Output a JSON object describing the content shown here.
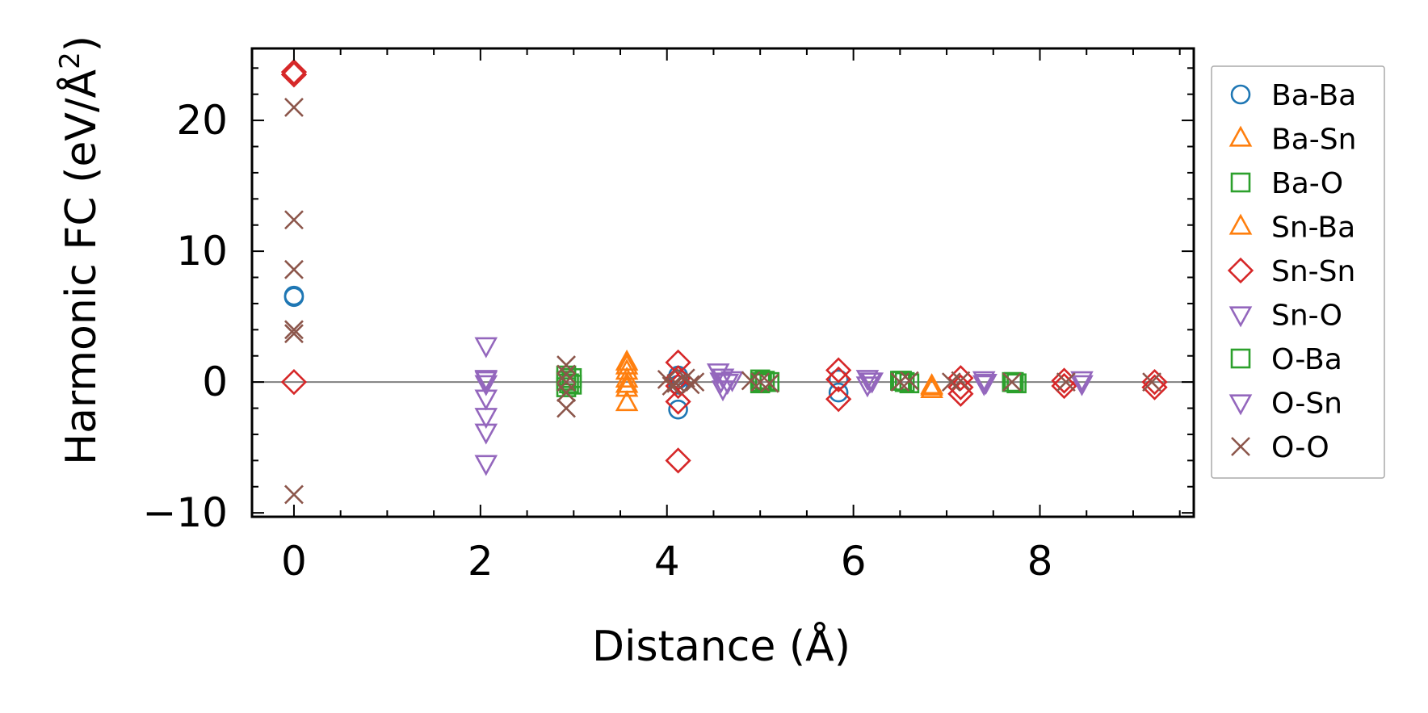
{
  "chart_data": {
    "type": "scatter",
    "title": "",
    "xlabel": "Distance (Å)",
    "ylabel": "Harmonic FC (eV/Å",
    "ylabel_unit_superscript": "2",
    "ylabel_close": ")",
    "xlim": [
      -0.45,
      9.65
    ],
    "ylim": [
      -10.3,
      25.5
    ],
    "xticks": [
      0,
      2,
      4,
      6,
      8
    ],
    "yticks": [
      -10,
      0,
      10,
      20
    ],
    "xtick_labels": [
      "0",
      "2",
      "4",
      "6",
      "8"
    ],
    "ytick_labels": [
      "−10",
      "0",
      "10",
      "20"
    ],
    "reference_line_y": 0,
    "grid": false,
    "legend_position": "outside-right",
    "series": [
      {
        "name": "Ba-Ba",
        "marker": "circle",
        "color": "#1f77b4",
        "points": [
          [
            0,
            6.6
          ],
          [
            0,
            6.5
          ],
          [
            4.12,
            -2.1
          ],
          [
            4.12,
            0.5
          ],
          [
            4.12,
            0.2
          ],
          [
            4.12,
            -0.2
          ],
          [
            5.84,
            -0.8
          ],
          [
            5.84,
            0.2
          ]
        ]
      },
      {
        "name": "Ba-Sn",
        "marker": "triangle-up",
        "color": "#ff7f0e",
        "points": [
          [
            3.57,
            1.5
          ],
          [
            3.57,
            0.8
          ],
          [
            3.57,
            0.2
          ],
          [
            3.57,
            -0.5
          ],
          [
            3.57,
            -1.6
          ],
          [
            6.84,
            -0.3
          ],
          [
            6.84,
            -0.6
          ]
        ]
      },
      {
        "name": "Ba-O",
        "marker": "square",
        "color": "#2ca02c",
        "points": [
          [
            2.92,
            -0.4
          ],
          [
            2.92,
            0.1
          ],
          [
            2.92,
            0.5
          ],
          [
            2.98,
            -0.2
          ],
          [
            2.98,
            0.3
          ],
          [
            5.0,
            0.2
          ],
          [
            5.0,
            -0.1
          ],
          [
            5.05,
            0.1
          ],
          [
            5.1,
            0.0
          ],
          [
            6.5,
            0.1
          ],
          [
            6.55,
            0.0
          ],
          [
            6.6,
            -0.1
          ],
          [
            7.7,
            0.0
          ],
          [
            7.75,
            -0.1
          ]
        ]
      },
      {
        "name": "Sn-Ba",
        "marker": "triangle-up",
        "color": "#ff7f0e",
        "points": [
          [
            3.57,
            1.2
          ],
          [
            3.57,
            -0.2
          ],
          [
            6.84,
            -0.4
          ]
        ]
      },
      {
        "name": "Sn-Sn",
        "marker": "diamond",
        "color": "#d62728",
        "points": [
          [
            0,
            23.7
          ],
          [
            0,
            23.5
          ],
          [
            0,
            0.0
          ],
          [
            4.12,
            1.5
          ],
          [
            4.12,
            0.3
          ],
          [
            4.12,
            -0.3
          ],
          [
            4.12,
            -1.5
          ],
          [
            4.12,
            -6.0
          ],
          [
            5.84,
            0.9
          ],
          [
            5.84,
            0.2
          ],
          [
            5.84,
            -1.3
          ],
          [
            7.15,
            0.3
          ],
          [
            7.15,
            -0.4
          ],
          [
            7.15,
            -0.9
          ],
          [
            8.26,
            0.1
          ],
          [
            8.26,
            -0.3
          ],
          [
            9.23,
            0.0
          ],
          [
            9.23,
            -0.4
          ]
        ]
      },
      {
        "name": "Sn-O",
        "marker": "triangle-down",
        "color": "#9467bd",
        "points": [
          [
            2.06,
            2.8
          ],
          [
            2.06,
            0.3
          ],
          [
            2.06,
            -0.1
          ],
          [
            2.06,
            -1.2
          ],
          [
            2.06,
            -2.6
          ],
          [
            2.06,
            -3.8
          ],
          [
            2.06,
            -6.2
          ],
          [
            4.55,
            0.8
          ],
          [
            4.6,
            0.4
          ],
          [
            4.65,
            0.0
          ],
          [
            4.6,
            -0.5
          ],
          [
            4.7,
            0.2
          ],
          [
            6.15,
            0.3
          ],
          [
            6.2,
            0.1
          ],
          [
            6.15,
            -0.2
          ],
          [
            7.4,
            0.2
          ],
          [
            7.4,
            -0.1
          ],
          [
            8.45,
            0.2
          ],
          [
            8.45,
            -0.1
          ]
        ]
      },
      {
        "name": "O-Ba",
        "marker": "square",
        "color": "#2ca02c",
        "points": [
          [
            2.95,
            -0.1
          ],
          [
            5.02,
            0.0
          ],
          [
            6.52,
            0.1
          ],
          [
            7.72,
            0.0
          ]
        ]
      },
      {
        "name": "O-Sn",
        "marker": "triangle-down",
        "color": "#9467bd",
        "points": [
          [
            2.06,
            0.2
          ],
          [
            4.58,
            0.1
          ],
          [
            6.18,
            0.1
          ],
          [
            7.42,
            0.0
          ]
        ]
      },
      {
        "name": "O-O",
        "marker": "x",
        "color": "#8c564b",
        "points": [
          [
            0,
            21.0
          ],
          [
            0,
            12.4
          ],
          [
            0,
            8.6
          ],
          [
            0,
            4.0
          ],
          [
            0,
            3.7
          ],
          [
            0,
            -8.6
          ],
          [
            2.92,
            1.3
          ],
          [
            2.92,
            0.6
          ],
          [
            2.92,
            0.0
          ],
          [
            2.92,
            -0.8
          ],
          [
            2.92,
            -2.0
          ],
          [
            4.0,
            0.2
          ],
          [
            4.1,
            -0.1
          ],
          [
            4.2,
            0.3
          ],
          [
            4.3,
            0.0
          ],
          [
            4.05,
            -0.3
          ],
          [
            4.25,
            -0.2
          ],
          [
            4.9,
            0.1
          ],
          [
            5.0,
            0.0
          ],
          [
            5.1,
            -0.1
          ],
          [
            6.5,
            0.0
          ],
          [
            6.6,
            0.1
          ],
          [
            7.05,
            0.0
          ],
          [
            7.15,
            0.1
          ],
          [
            7.7,
            0.0
          ],
          [
            8.28,
            0.0
          ],
          [
            9.2,
            0.0
          ]
        ]
      }
    ]
  }
}
